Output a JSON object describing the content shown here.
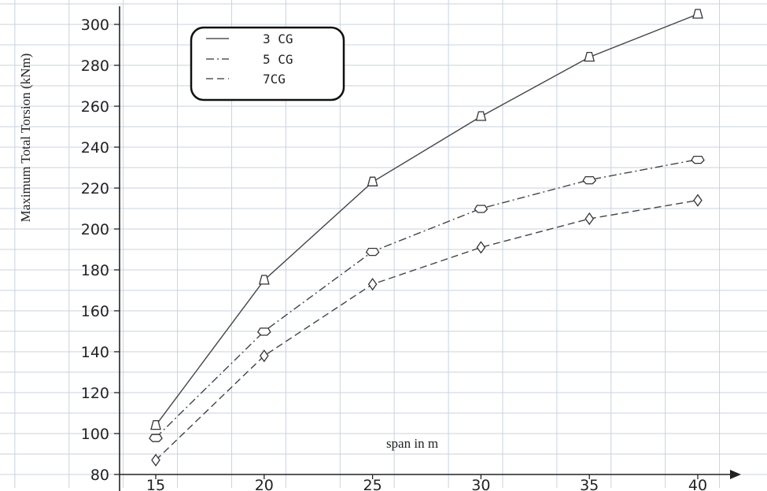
{
  "chart_data": {
    "type": "line",
    "title": "",
    "xlabel": "span in m",
    "ylabel": "Maximum Total Torsion (kNm)",
    "x": [
      15,
      20,
      25,
      30,
      35,
      40
    ],
    "xticks": [
      "15",
      "20",
      "25",
      "30",
      "35",
      "40"
    ],
    "yticks": [
      "80",
      "100",
      "120",
      "140",
      "160",
      "180",
      "200",
      "220",
      "240",
      "260",
      "280",
      "300"
    ],
    "xlim": [
      15,
      40
    ],
    "ylim": [
      80,
      305
    ],
    "grid": true,
    "legend_position": "top-left",
    "series": [
      {
        "name": "3 CG",
        "values": [
          104,
          175,
          223,
          255,
          284,
          305
        ],
        "dash": "solid",
        "marker": "triangle"
      },
      {
        "name": "5 CG",
        "values": [
          98,
          150,
          189,
          210,
          224,
          234
        ],
        "dash": "dashdot",
        "marker": "pentagon"
      },
      {
        "name": "7CG",
        "values": [
          87,
          138,
          173,
          191,
          205,
          214
        ],
        "dash": "dashed",
        "marker": "diamond"
      }
    ]
  }
}
